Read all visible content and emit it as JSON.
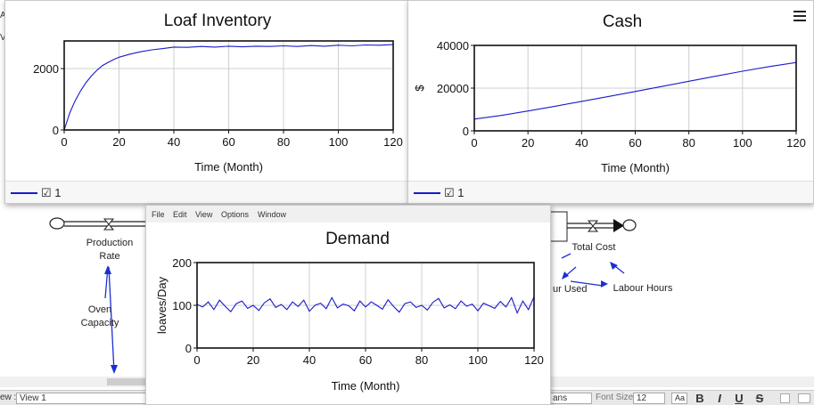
{
  "model": {
    "variables": [
      {
        "id": "production-rate",
        "label": "Production\nRate"
      },
      {
        "id": "oven-capacity",
        "label": "Oven\nCapacity"
      },
      {
        "id": "total-cost",
        "label": "Total Cost"
      },
      {
        "id": "labour-hours",
        "label": "Labour Hours"
      },
      {
        "id": "labour-used",
        "label": "ur Used"
      }
    ],
    "left_edge_fragments": [
      "A",
      "V"
    ]
  },
  "statusbar": {
    "view_prefix": "ew :",
    "view_value": "View 1",
    "font_fragment": "ans",
    "font_size_label": "Font Size :",
    "font_size_value": "12",
    "aa_label": "Aa",
    "bold_label": "B",
    "italic_label": "I",
    "underline_label": "U",
    "strike_label": "S"
  },
  "windows": {
    "loaf": {
      "title": "Loaf Inventory",
      "legend": "☑ 1",
      "chart_data": {
        "type": "line",
        "title": "Loaf Inventory",
        "xlabel": "Time (Month)",
        "ylabel": "",
        "xlim": [
          0,
          120
        ],
        "ylim": [
          0,
          2900
        ],
        "xticks": [
          0,
          20,
          40,
          60,
          80,
          100,
          120
        ],
        "yticks": [
          0,
          2000
        ],
        "grid": true,
        "series": [
          {
            "name": "1",
            "color": "#1a1acc",
            "x": [
              0,
              2,
              4,
              6,
              8,
              10,
              12,
              14,
              16,
              18,
              20,
              24,
              28,
              32,
              36,
              40,
              45,
              50,
              55,
              60,
              65,
              70,
              75,
              80,
              85,
              90,
              95,
              100,
              105,
              110,
              115,
              120
            ],
            "y": [
              0,
              550,
              950,
              1280,
              1550,
              1770,
              1950,
              2100,
              2200,
              2290,
              2370,
              2470,
              2550,
              2610,
              2650,
              2700,
              2690,
              2720,
              2700,
              2730,
              2710,
              2730,
              2720,
              2740,
              2720,
              2750,
              2730,
              2760,
              2740,
              2770,
              2760,
              2780
            ]
          }
        ]
      }
    },
    "cash": {
      "title": "Cash",
      "legend": "☑ 1",
      "chart_data": {
        "type": "line",
        "title": "Cash",
        "xlabel": "Time (Month)",
        "ylabel": "$",
        "xlim": [
          0,
          120
        ],
        "ylim": [
          0,
          40000
        ],
        "xticks": [
          0,
          20,
          40,
          60,
          80,
          100,
          120
        ],
        "yticks": [
          0,
          20000,
          40000
        ],
        "grid": true,
        "series": [
          {
            "name": "1",
            "color": "#1a1acc",
            "x": [
              0,
              10,
              20,
              30,
              40,
              50,
              60,
              70,
              80,
              90,
              100,
              110,
              120
            ],
            "y": [
              5500,
              7200,
              9300,
              11500,
              13800,
              16100,
              18400,
              20800,
              23200,
              25600,
              27900,
              30100,
              32000
            ]
          }
        ]
      }
    },
    "demand": {
      "menu": [
        "File",
        "Edit",
        "View",
        "Options",
        "Window"
      ],
      "title": "Demand",
      "chart_data": {
        "type": "line",
        "title": "Demand",
        "xlabel": "Time (Month)",
        "ylabel": "loaves/Day",
        "xlim": [
          0,
          120
        ],
        "ylim": [
          0,
          200
        ],
        "xticks": [
          0,
          20,
          40,
          60,
          80,
          100,
          120
        ],
        "yticks": [
          0,
          100,
          200
        ],
        "grid": true,
        "series": [
          {
            "name": "Demand",
            "color": "#1a1acc",
            "x": [
              0,
              2,
              4,
              6,
              8,
              10,
              12,
              14,
              16,
              18,
              20,
              22,
              24,
              26,
              28,
              30,
              32,
              34,
              36,
              38,
              40,
              42,
              44,
              46,
              48,
              50,
              52,
              54,
              56,
              58,
              60,
              62,
              64,
              66,
              68,
              70,
              72,
              74,
              76,
              78,
              80,
              82,
              84,
              86,
              88,
              90,
              92,
              94,
              96,
              98,
              100,
              102,
              104,
              106,
              108,
              110,
              112,
              114,
              116,
              118,
              120
            ],
            "y": [
              102,
              96,
              108,
              90,
              112,
              98,
              85,
              104,
              110,
              93,
              100,
              88,
              106,
              115,
              95,
              102,
              90,
              108,
              97,
              112,
              86,
              100,
              105,
              92,
              118,
              94,
              103,
              99,
              87,
              110,
              96,
              108,
              100,
              91,
              113,
              97,
              84,
              104,
              108,
              95,
              100,
              89,
              107,
              116,
              94,
              101,
              92,
              110,
              98,
              103,
              87,
              105,
              99,
              93,
              109,
              96,
              118,
              82,
              110,
              90,
              120
            ]
          }
        ]
      }
    }
  }
}
